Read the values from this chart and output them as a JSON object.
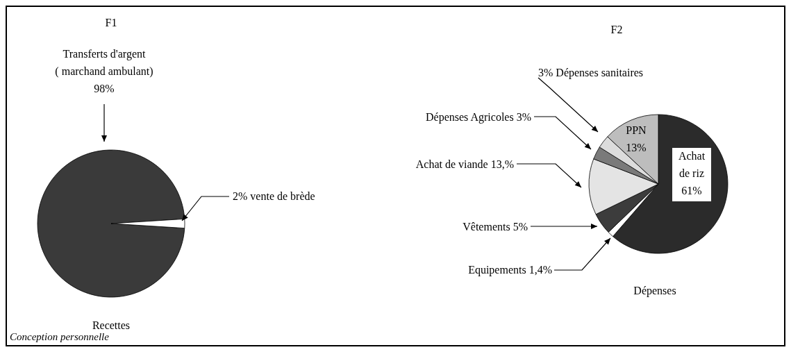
{
  "chart_data": [
    {
      "type": "pie",
      "title": "F1",
      "xlabel": "Recettes",
      "categories": [
        "Transferts d'argent ( marchand ambulant)",
        "vente de brède"
      ],
      "values": [
        98,
        2
      ],
      "colors": [
        "#3a3a3a",
        "#ffffff"
      ],
      "value_labels": [
        "98%",
        "2%"
      ],
      "annotations": [
        "Conception personnelle"
      ]
    },
    {
      "type": "pie",
      "title": "F2",
      "xlabel": "Dépenses",
      "categories": [
        "Achat de riz",
        "Equipements",
        "Vêtements",
        "Achat de viande",
        "Dépenses Agricoles",
        "Dépenses sanitaires",
        "PPN"
      ],
      "values": [
        61,
        1.4,
        5,
        13,
        3,
        3,
        13
      ],
      "colors": [
        "#2b2b2b",
        "#ffffff",
        "#3c3c3c",
        "#e4e4e4",
        "#7a7a7a",
        "#dcdcdc",
        "#bdbdbd"
      ],
      "value_labels": [
        "61%",
        "1,4%",
        "5%",
        "13,%",
        "3%",
        "3%",
        "13%"
      ]
    }
  ]
}
